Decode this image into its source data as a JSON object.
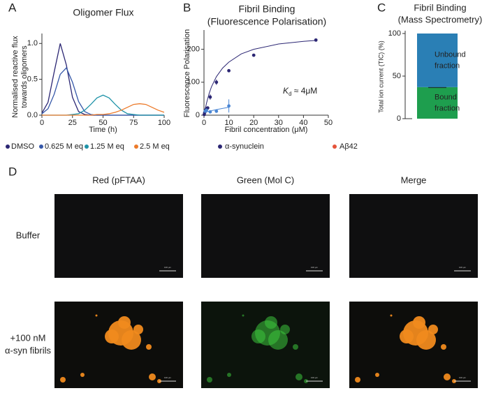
{
  "panel_labels": [
    "A",
    "B",
    "C",
    "D"
  ],
  "chart_data": [
    {
      "type": "line",
      "title": [
        "Oligomer Flux"
      ],
      "xlabel": "Time (h)",
      "ylabel": [
        "Normalised reactive flux",
        "towards oligomers"
      ],
      "x": [
        0,
        5,
        10,
        15,
        20,
        25,
        30,
        35,
        40,
        45,
        50,
        55,
        60,
        65,
        70,
        75,
        80,
        85,
        90,
        95,
        100
      ],
      "series": [
        {
          "name": "DMSO",
          "color": "#2b2673",
          "values": [
            0.03,
            0.18,
            0.6,
            1.0,
            0.7,
            0.25,
            0.05,
            0.01,
            0,
            0,
            0,
            0,
            0,
            0,
            0,
            0,
            0,
            0,
            0,
            0,
            0
          ]
        },
        {
          "name": "0.625 M eq",
          "color": "#3557a8",
          "values": [
            0.02,
            0.09,
            0.29,
            0.57,
            0.66,
            0.46,
            0.19,
            0.05,
            0.01,
            0,
            0,
            0,
            0,
            0,
            0,
            0,
            0,
            0,
            0,
            0,
            0
          ]
        },
        {
          "name": "1.25 M eq",
          "color": "#1f93a8",
          "values": [
            0,
            0,
            0,
            0,
            0,
            0.01,
            0.02,
            0.07,
            0.15,
            0.24,
            0.28,
            0.24,
            0.15,
            0.07,
            0.02,
            0.01,
            0,
            0,
            0,
            0,
            0
          ]
        },
        {
          "name": "2.5 M eq",
          "color": "#ec7a2a",
          "values": [
            0,
            0,
            0,
            0,
            0,
            0,
            0,
            0,
            0,
            0.01,
            0.01,
            0.02,
            0.04,
            0.07,
            0.11,
            0.15,
            0.16,
            0.15,
            0.11,
            0.07,
            0.04
          ]
        }
      ],
      "xlim": [
        0,
        100
      ],
      "xticks": [
        0,
        25,
        50,
        75,
        100
      ],
      "ylim": [
        0,
        1.1
      ],
      "yticks": [
        {
          "value": 0,
          "label": "0.0"
        },
        0.5,
        {
          "value": 1,
          "label": "1.0"
        }
      ]
    },
    {
      "type": "scatter",
      "title": [
        "Fibril Binding",
        "(Fluorescence Polarisation)"
      ],
      "xlabel": "Fibril concentration (μM)",
      "ylabel": "Fluorescence Polarisation",
      "annotation": {
        "symbol": "K",
        "subscript": "d",
        "text": " ≈ 4μM"
      },
      "series": [
        {
          "name": "α-synuclein",
          "color": "#2b2673",
          "legend_color": "#2b2673",
          "x": [
            0.1,
            0.3,
            0.6,
            1,
            1.5,
            2.5,
            5,
            10,
            20,
            45
          ],
          "values": [
            2,
            8,
            15,
            20,
            22,
            55,
            100,
            135,
            182,
            228
          ],
          "errors": [
            3,
            3,
            4,
            4,
            4,
            8,
            8,
            4,
            4,
            3
          ]
        },
        {
          "name": "Aβ42",
          "color": "#4a86d4",
          "legend_color": "#e5533a",
          "x": [
            0.5,
            1,
            2.5,
            5,
            10
          ],
          "values": [
            12,
            15,
            10,
            12,
            28
          ],
          "errors": [
            3,
            3,
            3,
            3,
            20
          ]
        }
      ],
      "fit_lines": [
        {
          "color": "#2b2673",
          "x": [
            0,
            1,
            2,
            3,
            5,
            7.5,
            10,
            15,
            20,
            30,
            40,
            45
          ],
          "values": [
            0,
            36,
            64,
            86,
            117,
            143,
            161,
            186,
            200,
            216,
            224,
            227
          ]
        },
        {
          "color": "#4a86d4",
          "x": [
            0,
            2,
            5,
            10
          ],
          "values": [
            8,
            12,
            17,
            24
          ]
        }
      ],
      "xlim": [
        0,
        50
      ],
      "xticks": [
        0,
        10,
        20,
        30,
        40,
        50
      ],
      "ylim": [
        0,
        250
      ],
      "yticks": [
        0,
        100,
        200
      ]
    },
    {
      "type": "stacked-bar",
      "title": [
        "Fibril Binding",
        "(Mass Spectrometry)"
      ],
      "ylabel": "Total ion current (TIC) (%)",
      "series": [
        {
          "label_lines": [
            "Bound",
            "fraction"
          ],
          "color": "#1e9e4e",
          "values": [
            37
          ],
          "errors": [
            1
          ]
        },
        {
          "label_lines": [
            "Unbound",
            "fraction"
          ],
          "color": "#2a7fb5",
          "values": [
            63
          ]
        }
      ],
      "ylim": [
        0,
        100
      ],
      "yticks": [
        0,
        50,
        100
      ]
    }
  ],
  "microscopy": {
    "columns": [
      "Red (pFTAA)",
      "Green (Mol C)",
      "Merge"
    ],
    "rows": [
      [
        "Buffer"
      ],
      [
        "+100 nM",
        "α-syn fibrils"
      ]
    ],
    "scale_bar": "100 μm"
  }
}
